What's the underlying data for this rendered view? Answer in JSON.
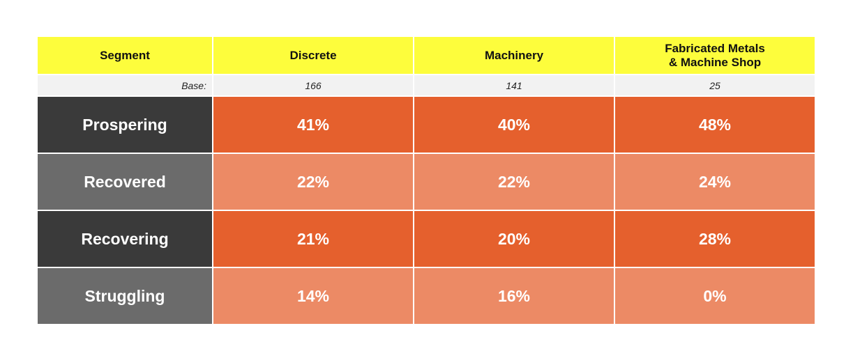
{
  "colors": {
    "header_bg": "#fdfd3c",
    "base_bg": "#f2f2f2",
    "segment_dark": "#3a3a3a",
    "segment_light": "#6b6b6b",
    "value_dark": "#e5602d",
    "value_light": "#ec8a65"
  },
  "chart_data": {
    "type": "table",
    "columns": [
      "Segment",
      "Discrete",
      "Machinery",
      "Fabricated Metals\n& Machine Shop"
    ],
    "base": {
      "label": "Base:",
      "values": [
        "166",
        "141",
        "25"
      ]
    },
    "rows": [
      {
        "segment": "Prospering",
        "values": [
          "41%",
          "40%",
          "48%"
        ]
      },
      {
        "segment": "Recovered",
        "values": [
          "22%",
          "22%",
          "24%"
        ]
      },
      {
        "segment": "Recovering",
        "values": [
          "21%",
          "20%",
          "28%"
        ]
      },
      {
        "segment": "Struggling",
        "values": [
          "14%",
          "16%",
          "0%"
        ]
      }
    ]
  }
}
